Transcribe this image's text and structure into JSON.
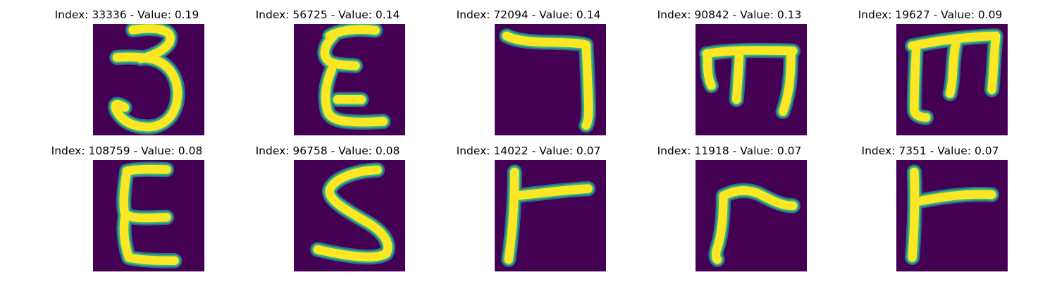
{
  "colors": {
    "background": "#440154",
    "mid_dark": "#31688e",
    "mid": "#35b779",
    "foreground": "#fde725",
    "colormap": "viridis"
  },
  "chart_data": {
    "type": "heatmap",
    "layout": "grid 2 rows x 5 columns of glyph images",
    "panels": [
      {
        "title": "Index: 33336 - Value: 0.19",
        "index": 33336,
        "value": 0.19,
        "glyph": "3"
      },
      {
        "title": "Index: 56725 - Value: 0.14",
        "index": 56725,
        "value": 0.14,
        "glyph": "E"
      },
      {
        "title": "Index: 72094 - Value: 0.14",
        "index": 72094,
        "value": 0.14,
        "glyph": "hook"
      },
      {
        "title": "Index: 90842 - Value: 0.13",
        "index": 90842,
        "value": 0.13,
        "glyph": "m"
      },
      {
        "title": "Index: 19627 - Value: 0.09",
        "index": 19627,
        "value": 0.09,
        "glyph": "m-bold"
      },
      {
        "title": "Index: 108759 - Value: 0.08",
        "index": 108759,
        "value": 0.08,
        "glyph": "E-tall"
      },
      {
        "title": "Index: 96758 - Value: 0.08",
        "index": 96758,
        "value": 0.08,
        "glyph": "S"
      },
      {
        "title": "Index: 14022 - Value: 0.07",
        "index": 14022,
        "value": 0.07,
        "glyph": "r"
      },
      {
        "title": "Index: 11918 - Value: 0.07",
        "index": 11918,
        "value": 0.07,
        "glyph": "r-slant"
      },
      {
        "title": "Index: 7351 - Value: 0.07",
        "index": 7351,
        "value": 0.07,
        "glyph": "r-bold"
      }
    ]
  }
}
